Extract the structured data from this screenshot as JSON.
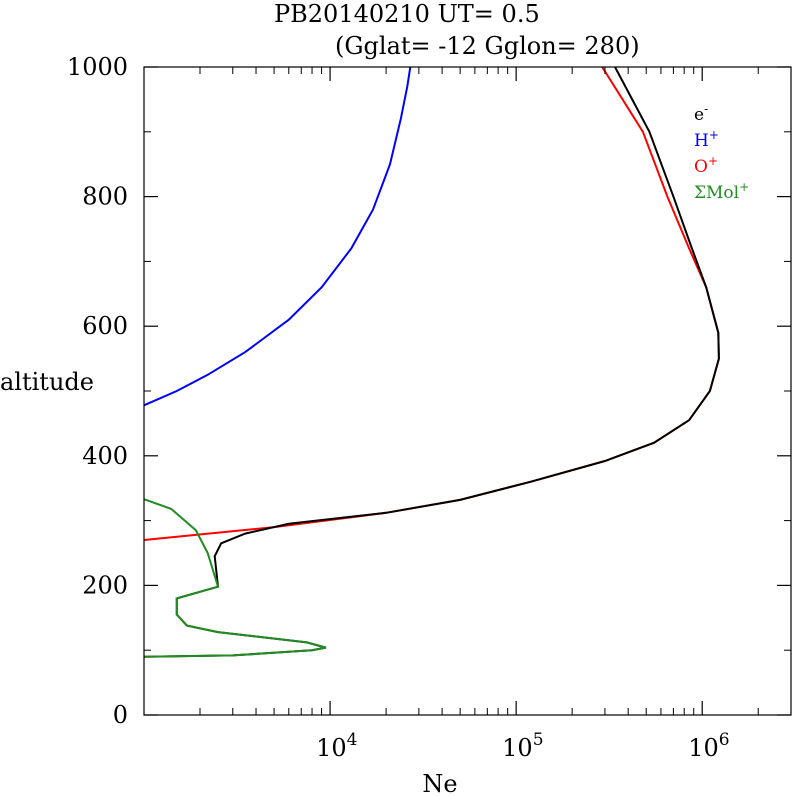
{
  "chart_data": {
    "type": "line",
    "title": "PB20140210   UT=  0.5",
    "subtitle": "(Gglat= -12   Gglon=  280)",
    "xlabel": "Ne",
    "ylabel": "altitude",
    "xscale": "log",
    "xlim": [
      1000,
      3000000
    ],
    "ylim": [
      0,
      1000
    ],
    "x_ticks": [
      {
        "value": 10000,
        "base": "10",
        "exp": "4"
      },
      {
        "value": 100000,
        "base": "10",
        "exp": "5"
      },
      {
        "value": 1000000,
        "base": "10",
        "exp": "6"
      }
    ],
    "y_ticks": [
      0,
      200,
      400,
      600,
      800,
      1000
    ],
    "grid": false,
    "legend_position": "top-right",
    "legend": [
      {
        "base": "e",
        "sup": "-",
        "color": "#000000"
      },
      {
        "base": "H",
        "sup": "+",
        "color": "#0000ff"
      },
      {
        "base": "O",
        "sup": "+",
        "color": "#ff0000"
      },
      {
        "base": "ΣMol",
        "sup": "+",
        "color": "#228b22"
      }
    ],
    "series": [
      {
        "key": "H+",
        "color": "#0000ff",
        "points": [
          [
            1000,
            478
          ],
          [
            1500,
            500
          ],
          [
            2200,
            525
          ],
          [
            3500,
            560
          ],
          [
            6000,
            610
          ],
          [
            9000,
            660
          ],
          [
            13000,
            720
          ],
          [
            17000,
            780
          ],
          [
            21000,
            850
          ],
          [
            24000,
            920
          ],
          [
            26000,
            970
          ],
          [
            27000,
            1000
          ]
        ]
      },
      {
        "key": "O+",
        "color": "#ff0000",
        "points": [
          [
            1000,
            270
          ],
          [
            5000,
            290
          ],
          [
            20000,
            312
          ],
          [
            50000,
            332
          ],
          [
            120000,
            360
          ],
          [
            300000,
            392
          ],
          [
            550000,
            420
          ],
          [
            850000,
            455
          ],
          [
            1100000,
            500
          ],
          [
            1230000,
            550
          ],
          [
            1220000,
            590
          ],
          [
            1050000,
            660
          ],
          [
            850000,
            720
          ],
          [
            650000,
            800
          ],
          [
            480000,
            900
          ],
          [
            290000,
            1000
          ]
        ]
      },
      {
        "key": "e-",
        "color": "#000000",
        "points": [
          [
            1000,
            90
          ],
          [
            3000,
            92
          ],
          [
            8000,
            100
          ],
          [
            9500,
            104
          ],
          [
            7500,
            112
          ],
          [
            2500,
            128
          ],
          [
            1700,
            138
          ],
          [
            1500,
            155
          ],
          [
            1500,
            170
          ],
          [
            1500,
            180
          ],
          [
            2500,
            198
          ],
          [
            2400,
            245
          ],
          [
            2600,
            265
          ],
          [
            3500,
            280
          ],
          [
            6000,
            295
          ],
          [
            20000,
            312
          ],
          [
            50000,
            332
          ],
          [
            120000,
            360
          ],
          [
            300000,
            392
          ],
          [
            550000,
            420
          ],
          [
            850000,
            455
          ],
          [
            1100000,
            500
          ],
          [
            1230000,
            550
          ],
          [
            1220000,
            590
          ],
          [
            1050000,
            660
          ],
          [
            880000,
            720
          ],
          [
            700000,
            800
          ],
          [
            520000,
            900
          ],
          [
            340000,
            1000
          ]
        ]
      },
      {
        "key": "ΣMol+",
        "color": "#228b22",
        "points": [
          [
            1000,
            333
          ],
          [
            1400,
            318
          ],
          [
            1900,
            285
          ],
          [
            2200,
            250
          ],
          [
            2500,
            198
          ],
          [
            1500,
            180
          ],
          [
            1500,
            170
          ],
          [
            1500,
            155
          ],
          [
            1700,
            138
          ],
          [
            2500,
            128
          ],
          [
            7500,
            112
          ],
          [
            9500,
            104
          ],
          [
            8000,
            100
          ],
          [
            3000,
            92
          ],
          [
            1000,
            90
          ]
        ]
      }
    ]
  }
}
